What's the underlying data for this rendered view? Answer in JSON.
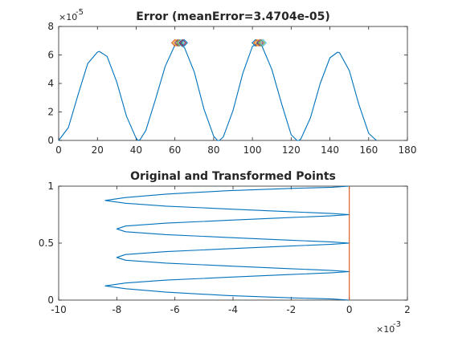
{
  "figure": {
    "background": "#ffffff",
    "line_color": "#0072BD",
    "line_color_2": "#D95319"
  },
  "chart_data": [
    {
      "type": "line",
      "title": "Error (meanError=3.4704e-05)",
      "xlabel": "",
      "ylabel": "",
      "xlim": [
        0,
        180
      ],
      "ylim": [
        0,
        8
      ],
      "y_exponent_label": "×10",
      "y_exponent": "-5",
      "xticks": [
        0,
        20,
        40,
        60,
        80,
        100,
        120,
        140,
        160,
        180
      ],
      "yticks": [
        0,
        2,
        4,
        6,
        8
      ],
      "grid": false,
      "series": [
        {
          "color": "#0072BD",
          "x": [
            0,
            5,
            10,
            15,
            20,
            21,
            25,
            30,
            35,
            40,
            41,
            42,
            45,
            50,
            55,
            60,
            62,
            65,
            70,
            75,
            80,
            82,
            83,
            85,
            90,
            95,
            100,
            103,
            105,
            110,
            115,
            120,
            123,
            124,
            125,
            130,
            135,
            140,
            144,
            145,
            150,
            155,
            160,
            164
          ],
          "values": [
            0,
            0.9,
            3.2,
            5.4,
            6.2,
            6.25,
            5.9,
            4.1,
            1.7,
            0.15,
            0.0,
            0.05,
            0.7,
            2.9,
            5.2,
            6.7,
            6.8,
            6.5,
            4.8,
            2.2,
            0.3,
            0.0,
            0.0,
            0.25,
            2.1,
            4.7,
            6.6,
            6.85,
            6.6,
            5.0,
            2.6,
            0.4,
            0.0,
            0.0,
            0.1,
            1.6,
            4.0,
            5.8,
            6.2,
            6.15,
            4.9,
            2.5,
            0.5,
            0.0
          ]
        }
      ],
      "markers": [
        {
          "x": 60.0,
          "y": 6.85,
          "color": "#D95319"
        },
        {
          "x": 60.8,
          "y": 6.85,
          "color": "#EDB120"
        },
        {
          "x": 61.6,
          "y": 6.85,
          "color": "#7E2F8E"
        },
        {
          "x": 62.4,
          "y": 6.85,
          "color": "#77AC30"
        },
        {
          "x": 63.2,
          "y": 6.85,
          "color": "#4DBEEE"
        },
        {
          "x": 64.0,
          "y": 6.85,
          "color": "#A2142F"
        },
        {
          "x": 64.8,
          "y": 6.85,
          "color": "#0072BD"
        },
        {
          "x": 101.5,
          "y": 6.85,
          "color": "#0072BD"
        },
        {
          "x": 102.3,
          "y": 6.85,
          "color": "#D95319"
        },
        {
          "x": 103.1,
          "y": 6.85,
          "color": "#EDB120"
        },
        {
          "x": 103.9,
          "y": 6.85,
          "color": "#7E2F8E"
        },
        {
          "x": 104.7,
          "y": 6.85,
          "color": "#77AC30"
        },
        {
          "x": 105.5,
          "y": 6.85,
          "color": "#4DBEEE"
        }
      ]
    },
    {
      "type": "line",
      "title": "Original and Transformed Points",
      "xlabel": "",
      "ylabel": "",
      "xlim": [
        -10,
        2
      ],
      "ylim": [
        0,
        1
      ],
      "x_exponent_label": "×10",
      "x_exponent": "-3",
      "xticks": [
        -10,
        -8,
        -6,
        -4,
        -2,
        0,
        2
      ],
      "yticks": [
        0,
        0.5,
        1
      ],
      "grid": false,
      "series": [
        {
          "color": "#0072BD",
          "x": [
            0,
            -0.6,
            -2.0,
            -4.2,
            -6.3,
            -7.7,
            -8.4,
            -7.7,
            -6.3,
            -4.2,
            -2.0,
            -0.6,
            0,
            -0.6,
            -2.0,
            -4.2,
            -6.3,
            -7.7,
            -8.0,
            -7.7,
            -6.3,
            -4.2,
            -2.0,
            -0.6,
            0,
            -0.6,
            -2.0,
            -4.2,
            -6.3,
            -7.7,
            -8.0,
            -7.7,
            -6.3,
            -4.2,
            -2.0,
            -0.6,
            0,
            -0.6,
            -2.0,
            -4.2,
            -6.3,
            -7.7,
            -8.4,
            -7.7,
            -6.3,
            -4.2,
            -2.0,
            -0.6,
            0
          ],
          "values": [
            0.0,
            0.01,
            0.02,
            0.04,
            0.07,
            0.1,
            0.125,
            0.15,
            0.175,
            0.2,
            0.225,
            0.24,
            0.25,
            0.26,
            0.275,
            0.3,
            0.325,
            0.35,
            0.375,
            0.4,
            0.425,
            0.45,
            0.475,
            0.49,
            0.5,
            0.51,
            0.525,
            0.55,
            0.575,
            0.6,
            0.625,
            0.65,
            0.675,
            0.7,
            0.725,
            0.74,
            0.75,
            0.76,
            0.775,
            0.8,
            0.825,
            0.85,
            0.875,
            0.9,
            0.93,
            0.96,
            0.98,
            0.99,
            1.0
          ]
        },
        {
          "color": "#D95319",
          "x": [
            0,
            0
          ],
          "values": [
            0,
            1
          ]
        }
      ]
    }
  ]
}
